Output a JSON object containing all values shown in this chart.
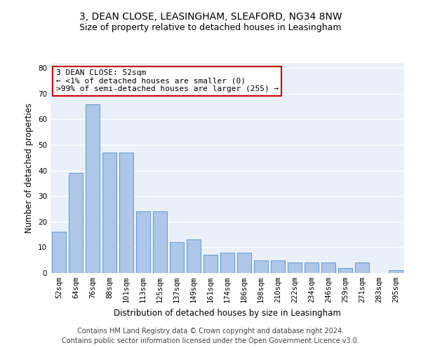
{
  "title1": "3, DEAN CLOSE, LEASINGHAM, SLEAFORD, NG34 8NW",
  "title2": "Size of property relative to detached houses in Leasingham",
  "xlabel": "Distribution of detached houses by size in Leasingham",
  "ylabel": "Number of detached properties",
  "categories": [
    "52sqm",
    "64sqm",
    "76sqm",
    "88sqm",
    "101sqm",
    "113sqm",
    "125sqm",
    "137sqm",
    "149sqm",
    "161sqm",
    "174sqm",
    "186sqm",
    "198sqm",
    "210sqm",
    "222sqm",
    "234sqm",
    "246sqm",
    "259sqm",
    "271sqm",
    "283sqm",
    "295sqm"
  ],
  "values": [
    16,
    39,
    66,
    47,
    47,
    24,
    24,
    12,
    13,
    7,
    8,
    8,
    5,
    5,
    4,
    4,
    4,
    2,
    4,
    0,
    1
  ],
  "bar_color": "#aec6e8",
  "bar_edge_color": "#5b9bd5",
  "background_color": "#eaf0f9",
  "annotation_text": "3 DEAN CLOSE: 52sqm\n← <1% of detached houses are smaller (0)\n>99% of semi-detached houses are larger (255) →",
  "annotation_box_color": "#ffffff",
  "annotation_box_edge_color": "#cc0000",
  "footnote1": "Contains HM Land Registry data © Crown copyright and database right 2024.",
  "footnote2": "Contains public sector information licensed under the Open Government Licence v3.0.",
  "ylim": [
    0,
    82
  ],
  "yticks": [
    0,
    10,
    20,
    30,
    40,
    50,
    60,
    70,
    80
  ],
  "grid_color": "#ffffff",
  "title1_fontsize": 10,
  "title2_fontsize": 9,
  "xlabel_fontsize": 8.5,
  "ylabel_fontsize": 8.5,
  "tick_fontsize": 7.5,
  "annotation_fontsize": 8,
  "footnote_fontsize": 7
}
